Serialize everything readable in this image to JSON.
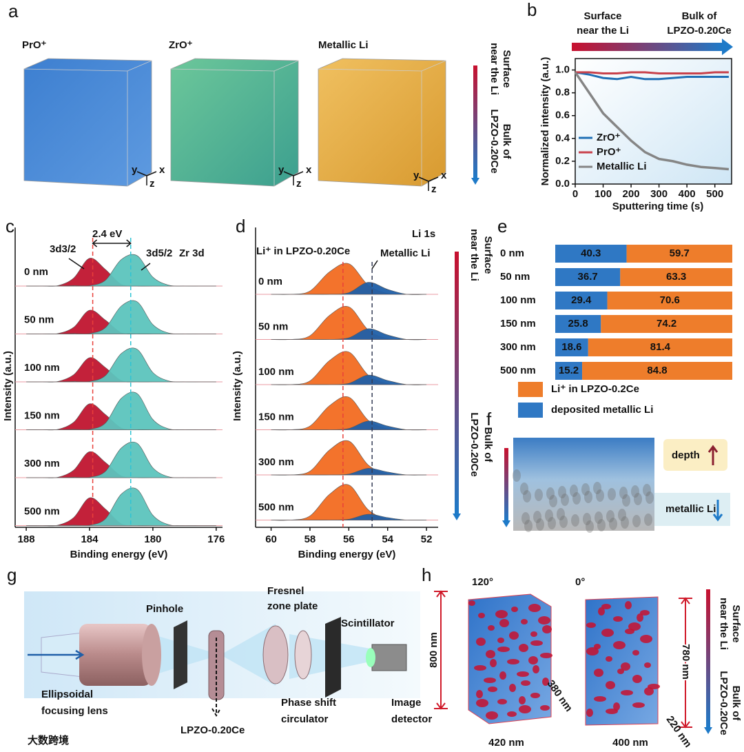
{
  "panel_labels": [
    "a",
    "b",
    "c",
    "d",
    "e",
    "f",
    "g",
    "h"
  ],
  "panel_a": {
    "labels": [
      "PrO⁺",
      "ZrO⁺",
      "Metallic Li"
    ],
    "axes": [
      "y",
      "z",
      "x"
    ],
    "arrow_top": [
      "Surface",
      "near the Li"
    ],
    "arrow_bottom": [
      "Bulk of",
      "LPZO-0.20Ce"
    ]
  },
  "chart_data": [
    {
      "type": "line",
      "annotations": {
        "surface": [
          "Surface",
          "near the Li"
        ],
        "bulk": [
          "Bulk of",
          "LPZO-0.20Ce"
        ]
      },
      "xlabel": "Sputtering time (s)",
      "ylabel": "Normalized intensity (a.u.)",
      "x": [
        0,
        50,
        100,
        150,
        200,
        250,
        300,
        350,
        400,
        450,
        500,
        550
      ],
      "series": [
        {
          "name": "ZrO⁺",
          "color": "#1f6fb5",
          "values": [
            0.98,
            0.96,
            0.93,
            0.92,
            0.94,
            0.92,
            0.92,
            0.93,
            0.94,
            0.94,
            0.94,
            0.94
          ]
        },
        {
          "name": "PrO⁺",
          "color": "#c8414b",
          "values": [
            0.98,
            0.98,
            0.97,
            0.97,
            0.98,
            0.98,
            0.97,
            0.97,
            0.97,
            0.97,
            0.98,
            0.98
          ]
        },
        {
          "name": "Metallic Li",
          "color": "#858585",
          "values": [
            0.98,
            0.8,
            0.62,
            0.5,
            0.38,
            0.28,
            0.22,
            0.2,
            0.17,
            0.15,
            0.14,
            0.13
          ]
        }
      ],
      "xlim": [
        0,
        560
      ],
      "ylim": [
        0,
        1.1
      ],
      "xticks": [
        0,
        100,
        200,
        300,
        400,
        500
      ],
      "yticks": [
        {
          "value": 0,
          "label": "0.0"
        },
        0.2,
        0.4,
        0.6,
        0.8,
        {
          "value": 1,
          "label": "1.0"
        }
      ],
      "legend": "center left"
    },
    {
      "type": "spectra",
      "title": "Zr 3d",
      "xlabel": "Binding energy (eV)",
      "ylabel": "Intensity (a.u.)",
      "annotation": "2.4 eV",
      "x": [
        188,
        187,
        186,
        185,
        184,
        183,
        182,
        181,
        180,
        179,
        178,
        177,
        176
      ],
      "xlim": [
        188.7,
        175.6
      ],
      "xticks": [
        188,
        184,
        180,
        176
      ],
      "components": [
        {
          "name": "3d3/2",
          "color": "#c0152f"
        },
        {
          "name": "3d5/2",
          "color": "#5cc4bd"
        }
      ],
      "markers": [
        {
          "value": 183.8,
          "color": "#e8403a"
        },
        {
          "value": 181.4,
          "color": "#2fc4d4"
        }
      ],
      "spectra": [
        {
          "label": "0 nm",
          "values": [
            [
              0,
              0,
              0.01,
              0.18,
              0.62,
              0.37,
              0.04,
              0,
              0,
              0,
              0,
              0,
              0
            ],
            [
              0,
              0,
              0,
              0.01,
              0.01,
              0.13,
              0.59,
              0.68,
              0.2,
              0.02,
              0,
              0,
              0
            ]
          ]
        },
        {
          "label": "50 nm",
          "values": [
            [
              0,
              0,
              0.01,
              0.15,
              0.53,
              0.31,
              0.03,
              0,
              0,
              0,
              0,
              0,
              0
            ],
            [
              0,
              0,
              0,
              0.01,
              0.01,
              0.14,
              0.62,
              0.72,
              0.21,
              0.02,
              0,
              0,
              0
            ]
          ]
        },
        {
          "label": "100 nm",
          "values": [
            [
              0,
              0,
              0.01,
              0.16,
              0.54,
              0.32,
              0.03,
              0,
              0,
              0,
              0,
              0,
              0
            ],
            [
              0,
              0,
              0,
              0.01,
              0.01,
              0.14,
              0.63,
              0.73,
              0.21,
              0.02,
              0,
              0,
              0
            ]
          ]
        },
        {
          "label": "150 nm",
          "values": [
            [
              0,
              0,
              0.01,
              0.17,
              0.58,
              0.34,
              0.04,
              0,
              0,
              0,
              0,
              0,
              0
            ],
            [
              0,
              0,
              0,
              0.01,
              0.01,
              0.15,
              0.7,
              0.81,
              0.23,
              0.02,
              0,
              0,
              0
            ]
          ]
        },
        {
          "label": "300 nm",
          "values": [
            [
              0,
              0,
              0.01,
              0.17,
              0.58,
              0.34,
              0.04,
              0,
              0,
              0,
              0,
              0,
              0
            ],
            [
              0,
              0,
              0,
              0.01,
              0.01,
              0.14,
              0.66,
              0.77,
              0.22,
              0.02,
              0,
              0,
              0
            ]
          ]
        },
        {
          "label": "500 nm",
          "values": [
            [
              0,
              0,
              0.01,
              0.18,
              0.62,
              0.37,
              0.04,
              0,
              0,
              0,
              0,
              0,
              0
            ],
            [
              0,
              0,
              0,
              0.01,
              0.01,
              0.15,
              0.7,
              0.81,
              0.23,
              0.02,
              0,
              0,
              0
            ]
          ]
        }
      ]
    },
    {
      "type": "spectra",
      "title": "Li 1s",
      "xlabel": "Binding energy (eV)",
      "ylabel": "Intensity (a.u.)",
      "x": [
        60,
        59,
        58,
        57,
        56,
        55,
        54,
        53,
        52
      ],
      "xlim": [
        60.8,
        51.4
      ],
      "xticks": [
        60,
        58,
        56,
        54,
        52
      ],
      "components": [
        {
          "name": "Li⁺ in LPZO-0.20Ce",
          "color": "#f26b21"
        },
        {
          "name": "Metallic Li",
          "color": "#1f5fa8"
        }
      ],
      "markers": [
        {
          "value": 56.3,
          "color": "#e8403a"
        },
        {
          "value": 54.8,
          "color": "#333b55"
        }
      ],
      "side_arrow": {
        "top": [
          "Surface",
          "near the Li"
        ],
        "bottom": [
          "Bulk of",
          "LPZO-0.20Ce"
        ]
      },
      "spectra": [
        {
          "label": "0 nm",
          "values": [
            [
              0,
              0,
              0.08,
              0.54,
              0.74,
              0.22,
              0.02,
              0,
              0
            ],
            [
              0,
              0,
              0,
              0,
              0.04,
              0.29,
              0.12,
              0,
              0
            ]
          ]
        },
        {
          "label": "50 nm",
          "values": [
            [
              0,
              0,
              0.09,
              0.58,
              0.79,
              0.23,
              0.02,
              0,
              0
            ],
            [
              0,
              0,
              0,
              0,
              0.04,
              0.26,
              0.11,
              0,
              0
            ]
          ]
        },
        {
          "label": "100 nm",
          "values": [
            [
              0,
              0,
              0.09,
              0.58,
              0.79,
              0.23,
              0.02,
              0,
              0
            ],
            [
              0,
              0,
              0,
              0,
              0.03,
              0.23,
              0.1,
              0,
              0
            ]
          ]
        },
        {
          "label": "150 nm",
          "values": [
            [
              0,
              0,
              0.09,
              0.58,
              0.79,
              0.23,
              0.02,
              0,
              0
            ],
            [
              0,
              0,
              0,
              0,
              0.03,
              0.21,
              0.09,
              0,
              0
            ]
          ]
        },
        {
          "label": "300 nm",
          "values": [
            [
              0,
              0,
              0.09,
              0.6,
              0.82,
              0.24,
              0.02,
              0,
              0
            ],
            [
              0,
              0,
              0,
              0,
              0.02,
              0.16,
              0.07,
              0,
              0
            ]
          ]
        },
        {
          "label": "500 nm",
          "values": [
            [
              0,
              0,
              0.1,
              0.62,
              0.85,
              0.25,
              0.02,
              0,
              0
            ],
            [
              0,
              0,
              0,
              0,
              0.02,
              0.14,
              0.06,
              0,
              0
            ]
          ]
        }
      ]
    },
    {
      "type": "stacked_bar_h",
      "categories": [
        "0 nm",
        "50 nm",
        "100 nm",
        "150 nm",
        "300 nm",
        "500 nm"
      ],
      "xlim": [
        0,
        100
      ],
      "series": [
        {
          "name": "deposited metallic Li",
          "color": "#2f78c4",
          "values": [
            40.3,
            36.7,
            29.4,
            25.8,
            18.6,
            15.2
          ]
        },
        {
          "name": "Li⁺ in LPZO-0.2Ce",
          "color": "#ee7d2b",
          "values": [
            59.7,
            63.3,
            70.6,
            74.2,
            81.4,
            84.8
          ]
        }
      ]
    }
  ],
  "panel_f": {
    "labels": [
      "depth",
      "metallic Li"
    ]
  },
  "panel_g": {
    "pinhole": "Pinhole",
    "fresnel": [
      "Fresnel",
      "zone plate"
    ],
    "scintillator": "Scintillator",
    "lens": [
      "Ellipsoidal",
      "focusing lens"
    ],
    "sample": "LPZO-0.20Ce",
    "phase": [
      "Phase shift",
      "circulator"
    ],
    "detector": [
      "Image",
      "detector"
    ]
  },
  "panel_h": {
    "angles": [
      "120°",
      "0°"
    ],
    "left": {
      "height": "800 nm",
      "width": "420 nm",
      "depth": "380 nm"
    },
    "right": {
      "height": "780 nm",
      "width": "400 nm",
      "depth": "220 nm"
    },
    "arrow_top": [
      "Surface",
      "near the Li"
    ],
    "arrow_bottom": [
      "Bulk of",
      "LPZO-0.20Ce"
    ]
  },
  "watermark": "大数跨境"
}
